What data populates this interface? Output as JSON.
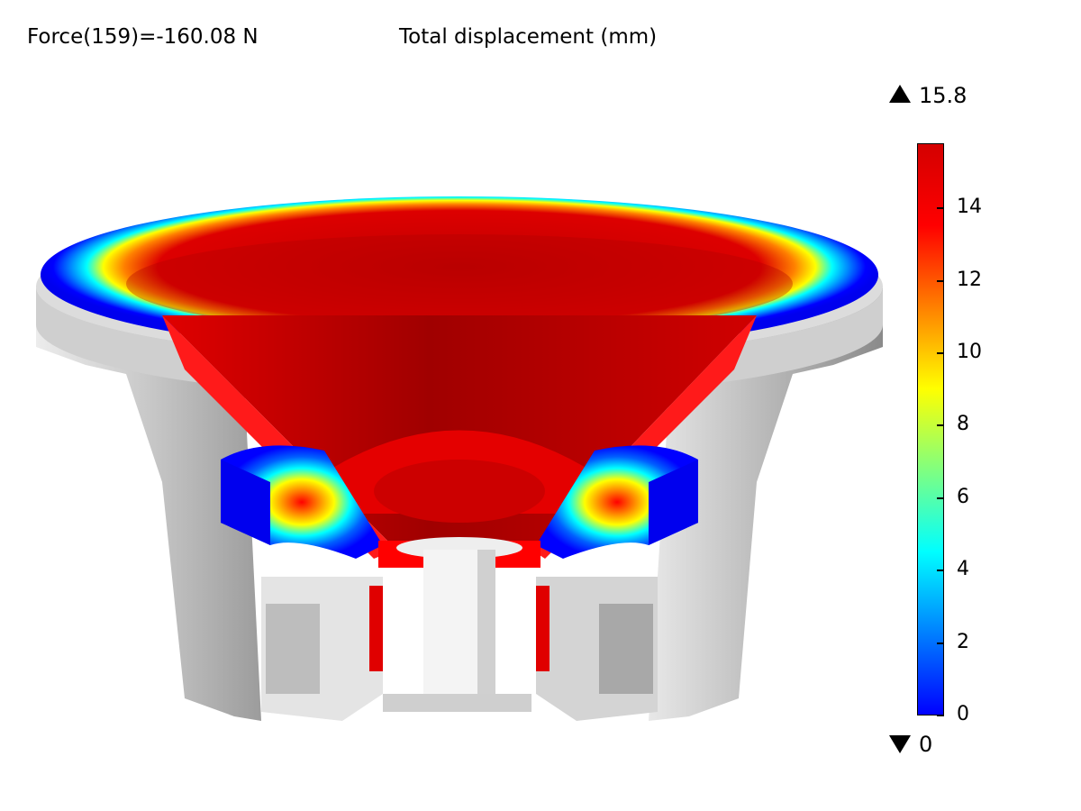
{
  "header": {
    "force_text": "Force(159)=-160.08 N",
    "title": "Total displacement (mm)"
  },
  "legend": {
    "max_value": "15.8",
    "min_value": "0",
    "range": [
      0,
      15.8
    ],
    "ticks": [
      "0",
      "2",
      "4",
      "6",
      "8",
      "10",
      "12",
      "14"
    ],
    "colormap": [
      "#0000ff",
      "#0080ff",
      "#00ffff",
      "#80ff80",
      "#ffff00",
      "#ff8000",
      "#ff0000",
      "#d40000"
    ]
  },
  "colors": {
    "low": "#0000ff",
    "high": "#cc0000",
    "structure": "#d9d9d9"
  }
}
